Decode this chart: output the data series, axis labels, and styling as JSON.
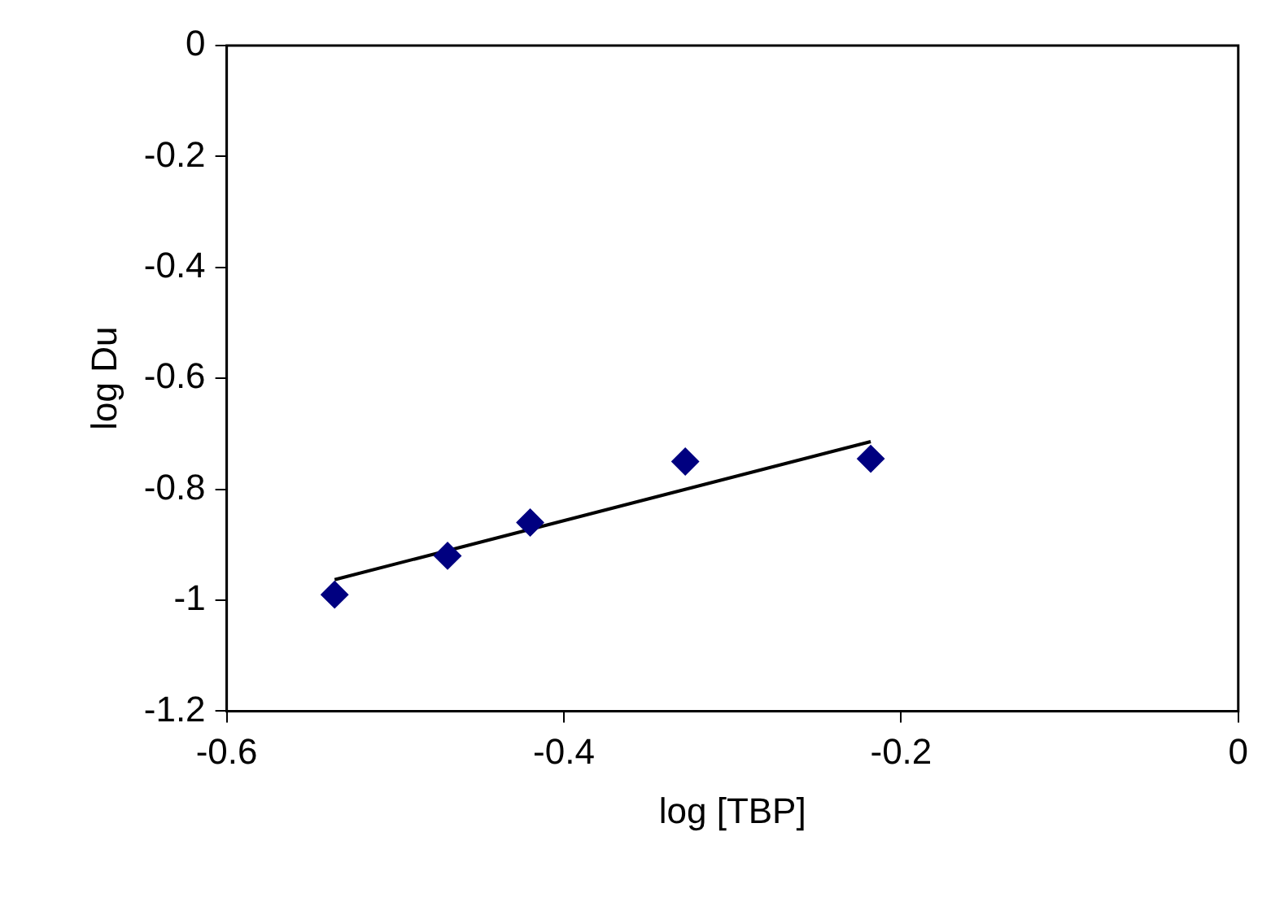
{
  "chart_data": {
    "type": "scatter",
    "xlabel": "log [TBP]",
    "ylabel": "log Du",
    "xlim": [
      -0.6,
      0
    ],
    "xticks": [
      -0.6,
      -0.4,
      -0.2,
      0
    ],
    "ylim": [
      -1.2,
      0
    ],
    "yticks": [
      -1.2,
      -1,
      -0.8,
      -0.6,
      -0.4,
      -0.2,
      0
    ],
    "grid": false,
    "legend": false,
    "series": [
      {
        "type": "scatter",
        "marker": "diamond",
        "color": "#000080",
        "x": [
          -0.536,
          -0.469,
          -0.42,
          -0.328,
          -0.218
        ],
        "values": [
          -0.99,
          -0.92,
          -0.86,
          -0.75,
          -0.745
        ]
      },
      {
        "type": "line",
        "marker": "none",
        "color": "#000000",
        "x": [
          -0.536,
          -0.218
        ],
        "values": [
          -0.963,
          -0.714
        ]
      }
    ]
  }
}
